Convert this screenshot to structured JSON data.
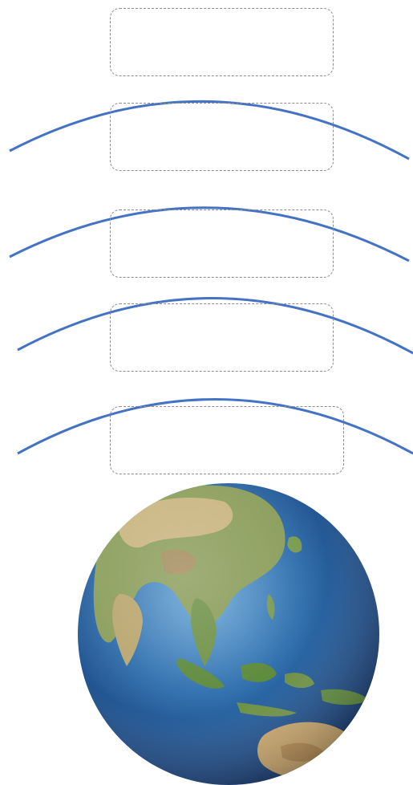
{
  "diagram": {
    "boxes": [
      {
        "id": "box-1",
        "text": ""
      },
      {
        "id": "box-2",
        "text": ""
      },
      {
        "id": "box-3",
        "text": ""
      },
      {
        "id": "box-4",
        "text": ""
      },
      {
        "id": "box-5",
        "text": ""
      }
    ],
    "layer_count": 4,
    "colors": {
      "layer_line": "#4472c4",
      "box_border": "#8c8c8c",
      "ocean_light": "#4f8fc7",
      "ocean_dark": "#0f2f66",
      "land_green": "#5d8a3c",
      "land_tan": "#c9b47f",
      "background": "#ffffff"
    },
    "globe": {
      "icon": "earth-globe-icon"
    }
  }
}
